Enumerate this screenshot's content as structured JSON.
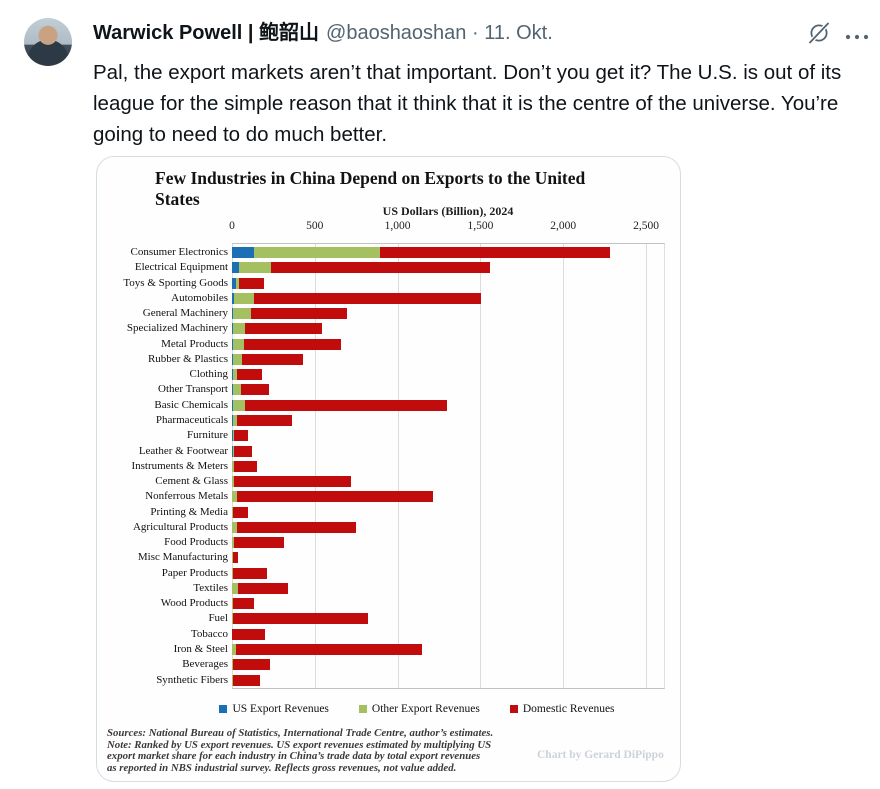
{
  "tweet": {
    "display_name": "Warwick Powell | 鲍韶山",
    "handle_meta": "@baoshaoshan · 11. Okt.",
    "body": "Pal, the export markets aren’t that important. Don’t you get it? The U.S. is out of its league for the simple reason that it think that it is the centre of the universe. You’re going to need to do much better.",
    "icons": {
      "grok": "slashed-circle",
      "more": "•••"
    },
    "icon_color": "#536471"
  },
  "chart_data": {
    "type": "bar",
    "orientation": "horizontal",
    "stacked": true,
    "title": "Few Industries in China Depend on Exports to the United States",
    "xlabel": "US Dollars (Billion), 2024",
    "xlim": [
      0,
      2500
    ],
    "xticks": [
      0,
      500,
      1000,
      1500,
      2000,
      2500
    ],
    "xtick_labels": [
      "0",
      "500",
      "1,000",
      "1,500",
      "2,000",
      "2,500"
    ],
    "grid": "vertical",
    "legend_position": "bottom",
    "categories": [
      "Consumer Electronics",
      "Electrical Equipment",
      "Toys & Sporting Goods",
      "Automobiles",
      "General Machinery",
      "Specialized Machinery",
      "Metal Products",
      "Rubber & Plastics",
      "Clothing",
      "Other Transport",
      "Basic Chemicals",
      "Pharmaceuticals",
      "Furniture",
      "Leather & Footwear",
      "Instruments & Meters",
      "Cement & Glass",
      "Nonferrous Metals",
      "Printing & Media",
      "Agricultural Products",
      "Food Products",
      "Misc Manufacturing",
      "Paper Products",
      "Textiles",
      "Wood Products",
      "Fuel",
      "Tobacco",
      "Iron & Steel",
      "Beverages",
      "Synthetic Fibers"
    ],
    "series": [
      {
        "name": "US Export Revenues",
        "color": "#1a6fb5",
        "values": [
          135,
          45,
          25,
          10,
          8,
          7,
          6,
          6,
          6,
          5,
          5,
          4,
          4,
          4,
          3,
          3,
          3,
          2,
          2,
          2,
          2,
          2,
          2,
          1,
          1,
          1,
          1,
          1,
          1
        ]
      },
      {
        "name": "Other Export Revenues",
        "color": "#a4c060",
        "values": [
          760,
          190,
          20,
          125,
          105,
          70,
          68,
          53,
          24,
          49,
          75,
          26,
          11,
          10,
          11,
          7,
          27,
          4,
          30,
          10,
          3,
          4,
          33,
          4,
          8,
          2,
          24,
          3,
          3
        ]
      },
      {
        "name": "Domestic Revenues",
        "color": "#c00c0c",
        "values": [
          1390,
          1325,
          150,
          1370,
          580,
          465,
          585,
          370,
          150,
          168,
          1220,
          330,
          80,
          107,
          140,
          710,
          1185,
          90,
          715,
          305,
          30,
          205,
          305,
          130,
          810,
          195,
          1125,
          225,
          165
        ]
      }
    ],
    "notes": "Sources: National Bureau of Statistics, International Trade Centre, author’s estimates.\nNote: Ranked by US export revenues. US export revenues estimated by multiplying US\nexport market share for each industry in China’s trade data by total export revenues\nas reported in NBS industrial survey. Reflects gross revenues, not value added.",
    "watermark": "Chart by Gerard DiPippo"
  }
}
